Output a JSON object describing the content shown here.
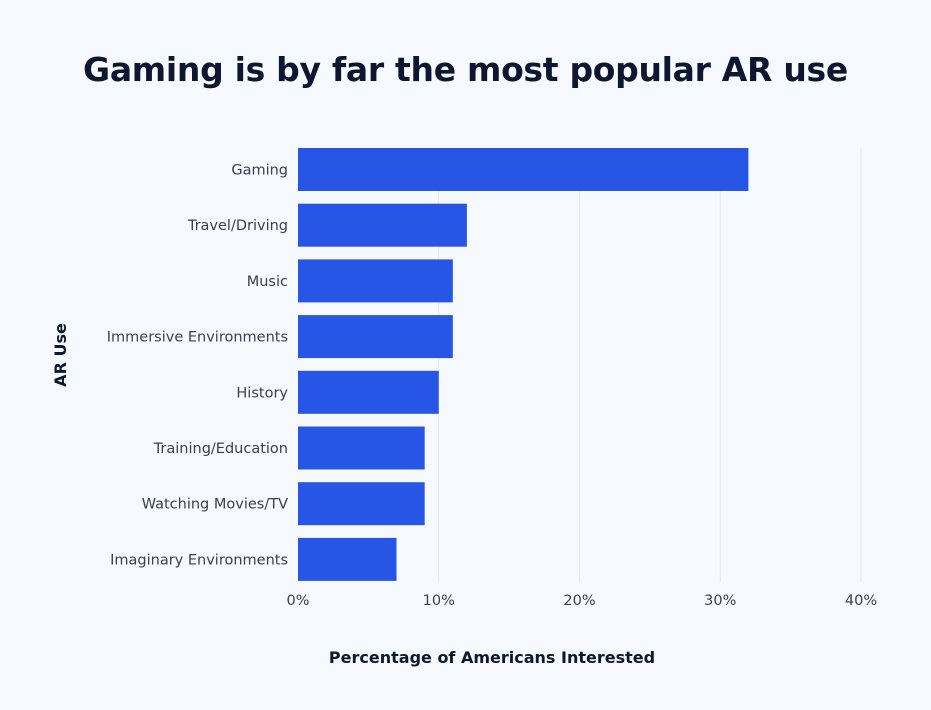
{
  "chart_data": {
    "type": "bar",
    "orientation": "horizontal",
    "title": "Gaming is by far the most popular AR use",
    "xlabel": "Percentage of Americans Interested",
    "ylabel": "AR Use",
    "categories": [
      "Gaming",
      "Travel/Driving",
      "Music",
      "Immersive Environments",
      "History",
      "Training/Education",
      "Watching Movies/TV",
      "Imaginary Environments"
    ],
    "values": [
      32,
      12,
      11,
      11,
      10,
      9,
      9,
      7
    ],
    "xlim": [
      0,
      40
    ],
    "xticks": [
      0,
      10,
      20,
      30,
      40
    ],
    "xtick_labels": [
      "0%",
      "10%",
      "20%",
      "30%",
      "40%"
    ],
    "grid": "vertical",
    "bar_color": "#2756e6",
    "background": "#f6f9fd"
  }
}
